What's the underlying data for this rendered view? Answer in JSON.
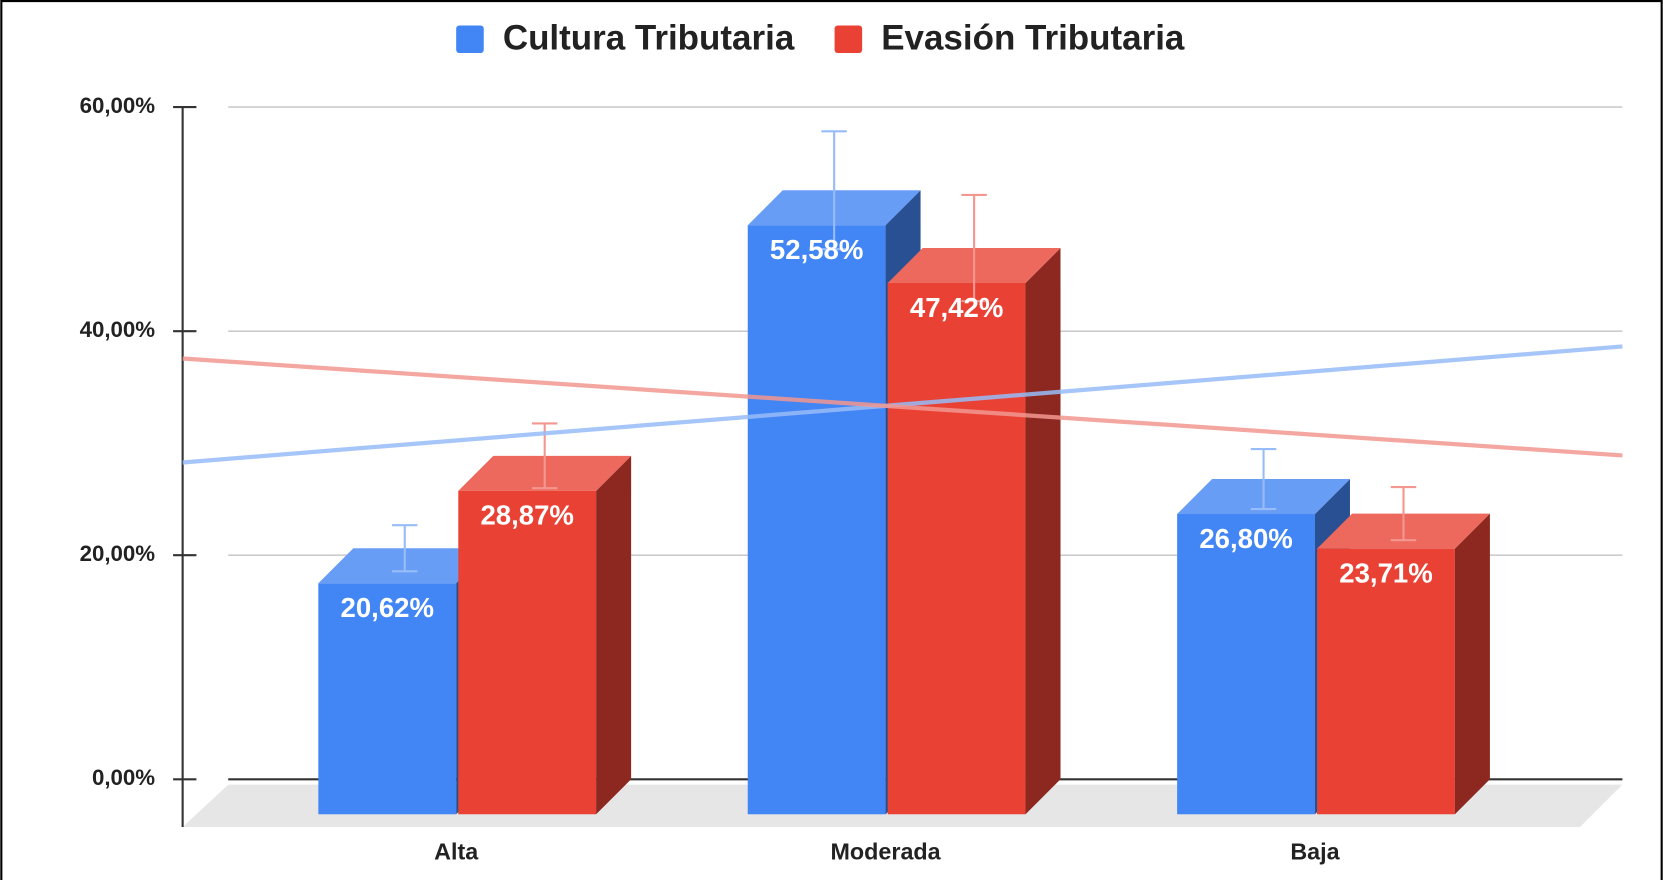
{
  "chart_data": {
    "type": "bar3d",
    "categories": [
      "Alta",
      "Moderada",
      "Baja"
    ],
    "series": [
      {
        "name": "Cultura Tributaria",
        "color": "#4285f4",
        "values": [
          20.62,
          52.58,
          26.8
        ],
        "value_labels": [
          "20,62%",
          "52,58%",
          "26,80%"
        ],
        "errors": [
          2.06,
          5.26,
          2.68
        ]
      },
      {
        "name": "Evasión Tributaria",
        "color": "#e94235",
        "values": [
          28.87,
          47.42,
          23.71
        ],
        "value_labels": [
          "28,87%",
          "47,42%",
          "23,71%"
        ],
        "errors": [
          2.89,
          4.74,
          2.37
        ]
      }
    ],
    "ylim": [
      0,
      60
    ],
    "yticks": [
      {
        "value": 0,
        "label": "0,00%"
      },
      {
        "value": 20,
        "label": "20,00%"
      },
      {
        "value": 40,
        "label": "40,00%"
      },
      {
        "value": 60,
        "label": "60,00%"
      }
    ],
    "grid": true,
    "legend": "top",
    "trendline": true
  }
}
